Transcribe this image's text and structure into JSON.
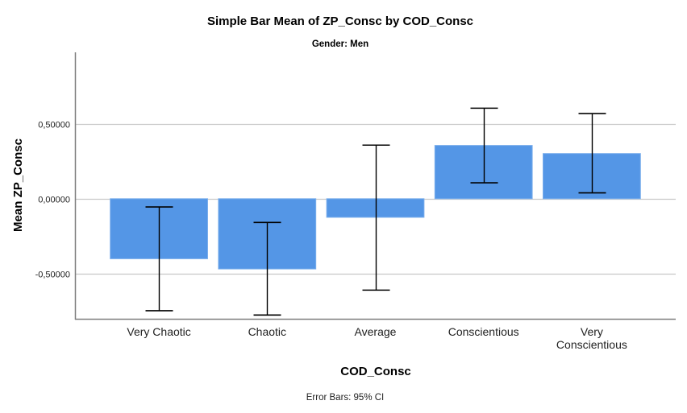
{
  "chart_data": {
    "type": "bar",
    "title": "Simple Bar Mean of ZP_Consc by COD_Consc",
    "subtitle": "Gender: Men",
    "xlabel": "COD_Consc",
    "ylabel": "Mean ZP_Consc",
    "footnote": "Error Bars: 95% CI",
    "categories": [
      [
        "Very Chaotic"
      ],
      [
        "Chaotic"
      ],
      [
        "Average"
      ],
      [
        "Conscientious"
      ],
      [
        "Very",
        "Conscientious"
      ]
    ],
    "values": [
      -0.4,
      -0.468,
      -0.124,
      0.355,
      0.301
    ],
    "error_bars": {
      "type": "95% CI",
      "lower": [
        -0.746,
        -0.775,
        -0.609,
        0.106,
        0.039
      ],
      "upper": [
        -0.055,
        -0.158,
        0.357,
        0.603,
        0.567
      ]
    },
    "ylim": [
      -0.8,
      0.975
    ],
    "yticks": [
      -0.5,
      0.0,
      0.5
    ],
    "ytick_labels": [
      "-0,50000",
      "0,00000",
      "0,50000"
    ],
    "grid": true,
    "legend": "none",
    "colors": {
      "bar": "#5496E6",
      "bar_edge": "#7AAEEC",
      "error_bar": "#000000",
      "grid": "#C8C8C8",
      "axis": "#7F7F7F"
    }
  }
}
